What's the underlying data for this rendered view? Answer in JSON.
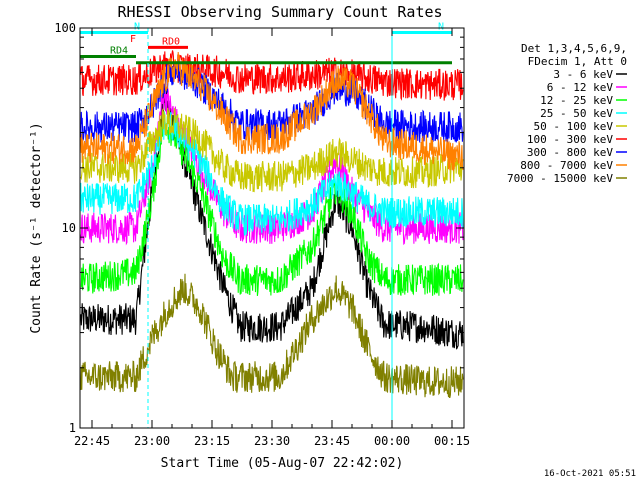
{
  "chart_data": {
    "type": "line",
    "title": "RHESSI Observing Summary Count Rates",
    "xlabel": "Start Time (05-Aug-07 22:42:02)",
    "ylabel": "Count Rate (s⁻¹ detector⁻¹)",
    "ylog": true,
    "ylim": [
      1,
      100
    ],
    "xlim_minutes": [
      0,
      96
    ],
    "x_start": "22:42:02",
    "x_tick_labels": [
      "22:45",
      "23:00",
      "23:15",
      "23:30",
      "23:45",
      "00:00",
      "00:15"
    ],
    "x_tick_minutes": [
      3,
      18,
      33,
      48,
      63,
      78,
      93
    ],
    "y_tick_labels": [
      "1",
      "10",
      "100"
    ],
    "y_tick_values": [
      1,
      10,
      100
    ],
    "legend_title": [
      "Det 1,3,4,5,6,9,",
      "FDecim 1, Att 0"
    ],
    "legend_position": "right",
    "footer": "16-Oct-2021 05:51",
    "series": [
      {
        "name": "3 - 6 keV",
        "color": "#000000",
        "points": [
          [
            0,
            3.5
          ],
          [
            14,
            3.5
          ],
          [
            18,
            15
          ],
          [
            21,
            45
          ],
          [
            24,
            30
          ],
          [
            30,
            12
          ],
          [
            36,
            5
          ],
          [
            40,
            3.2
          ],
          [
            50,
            3.2
          ],
          [
            58,
            5
          ],
          [
            64,
            14
          ],
          [
            68,
            10
          ],
          [
            72,
            5
          ],
          [
            76,
            3.3
          ],
          [
            86,
            3.2
          ],
          [
            93,
            3
          ]
        ]
      },
      {
        "name": "6 - 12 keV",
        "color": "#ff00ff",
        "points": [
          [
            0,
            10
          ],
          [
            14,
            10
          ],
          [
            18,
            20
          ],
          [
            21,
            48
          ],
          [
            24,
            34
          ],
          [
            30,
            20
          ],
          [
            36,
            12
          ],
          [
            40,
            10
          ],
          [
            50,
            10
          ],
          [
            58,
            12
          ],
          [
            64,
            22
          ],
          [
            68,
            15
          ],
          [
            72,
            12
          ],
          [
            76,
            10
          ],
          [
            86,
            10
          ],
          [
            93,
            10
          ]
        ]
      },
      {
        "name": "12 - 25 keV",
        "color": "#00ff00",
        "points": [
          [
            0,
            5.5
          ],
          [
            14,
            6
          ],
          [
            18,
            14
          ],
          [
            21,
            35
          ],
          [
            24,
            28
          ],
          [
            30,
            16
          ],
          [
            36,
            7
          ],
          [
            40,
            5.5
          ],
          [
            50,
            5.5
          ],
          [
            58,
            8
          ],
          [
            64,
            16
          ],
          [
            68,
            12
          ],
          [
            72,
            7
          ],
          [
            76,
            5.5
          ],
          [
            86,
            5.5
          ],
          [
            93,
            5.5
          ]
        ]
      },
      {
        "name": "25 - 50 keV",
        "color": "#00ffff",
        "points": [
          [
            0,
            14
          ],
          [
            14,
            14
          ],
          [
            18,
            20
          ],
          [
            21,
            33
          ],
          [
            24,
            31
          ],
          [
            30,
            22
          ],
          [
            36,
            13
          ],
          [
            40,
            11
          ],
          [
            50,
            11
          ],
          [
            58,
            13
          ],
          [
            64,
            17
          ],
          [
            68,
            15
          ],
          [
            72,
            13
          ],
          [
            76,
            12
          ],
          [
            86,
            12
          ],
          [
            93,
            12
          ]
        ]
      },
      {
        "name": "50 - 100 keV",
        "color": "#c8c800",
        "points": [
          [
            0,
            20
          ],
          [
            14,
            20
          ],
          [
            18,
            27
          ],
          [
            21,
            34
          ],
          [
            24,
            33
          ],
          [
            30,
            28
          ],
          [
            36,
            20
          ],
          [
            40,
            18
          ],
          [
            50,
            18
          ],
          [
            58,
            20
          ],
          [
            64,
            24
          ],
          [
            68,
            22
          ],
          [
            72,
            20
          ],
          [
            76,
            19
          ],
          [
            86,
            19
          ],
          [
            93,
            20
          ]
        ]
      },
      {
        "name": "100 - 300 keV",
        "color": "#ff0000",
        "points": [
          [
            0,
            55
          ],
          [
            14,
            55
          ],
          [
            18,
            60
          ],
          [
            21,
            65
          ],
          [
            24,
            64
          ],
          [
            30,
            62
          ],
          [
            36,
            60
          ],
          [
            40,
            56
          ],
          [
            50,
            56
          ],
          [
            58,
            58
          ],
          [
            64,
            60
          ],
          [
            68,
            58
          ],
          [
            72,
            56
          ],
          [
            76,
            54
          ],
          [
            86,
            52
          ],
          [
            93,
            52
          ]
        ]
      },
      {
        "name": "300 - 800 keV",
        "color": "#0000ff",
        "points": [
          [
            0,
            32
          ],
          [
            14,
            32
          ],
          [
            18,
            40
          ],
          [
            21,
            55
          ],
          [
            24,
            62
          ],
          [
            30,
            52
          ],
          [
            36,
            40
          ],
          [
            40,
            33
          ],
          [
            50,
            33
          ],
          [
            58,
            38
          ],
          [
            64,
            50
          ],
          [
            68,
            48
          ],
          [
            72,
            40
          ],
          [
            76,
            33
          ],
          [
            86,
            32
          ],
          [
            93,
            32
          ]
        ]
      },
      {
        "name": "800 - 7000 keV",
        "color": "#ff8000",
        "points": [
          [
            0,
            25
          ],
          [
            14,
            25
          ],
          [
            18,
            40
          ],
          [
            21,
            55
          ],
          [
            24,
            65
          ],
          [
            30,
            52
          ],
          [
            36,
            36
          ],
          [
            40,
            28
          ],
          [
            50,
            28
          ],
          [
            58,
            38
          ],
          [
            64,
            55
          ],
          [
            68,
            52
          ],
          [
            72,
            38
          ],
          [
            76,
            27
          ],
          [
            86,
            25
          ],
          [
            93,
            23
          ]
        ]
      },
      {
        "name": "7000 - 15000 keV",
        "color": "#808000",
        "points": [
          [
            0,
            1.8
          ],
          [
            14,
            1.8
          ],
          [
            18,
            2.8
          ],
          [
            22,
            4
          ],
          [
            26,
            5
          ],
          [
            30,
            4
          ],
          [
            34,
            2.5
          ],
          [
            38,
            1.8
          ],
          [
            50,
            1.8
          ],
          [
            54,
            2.5
          ],
          [
            58,
            3.5
          ],
          [
            64,
            5
          ],
          [
            68,
            4
          ],
          [
            72,
            2.5
          ],
          [
            76,
            1.8
          ],
          [
            86,
            1.7
          ],
          [
            93,
            1.7
          ]
        ]
      }
    ],
    "annotations": [
      {
        "label": "N",
        "color": "#00ffff",
        "x_minutes": [
          0,
          17
        ],
        "y": 95
      },
      {
        "label": "N",
        "color": "#00ffff",
        "x_minutes": [
          78,
          93
        ],
        "y": 95
      },
      {
        "label": "F",
        "color": "#ff0000",
        "x_minutes": [
          16,
          16
        ],
        "y": 82
      },
      {
        "label": "RD0",
        "color": "#ff0000",
        "x_minutes": [
          17,
          27
        ],
        "y": 80
      },
      {
        "label": "RD4",
        "color": "#008000",
        "x_minutes": [
          0,
          14
        ],
        "y": 72
      },
      {
        "label": "",
        "color": "#008000",
        "x_minutes": [
          14,
          93
        ],
        "y": 67
      }
    ]
  }
}
